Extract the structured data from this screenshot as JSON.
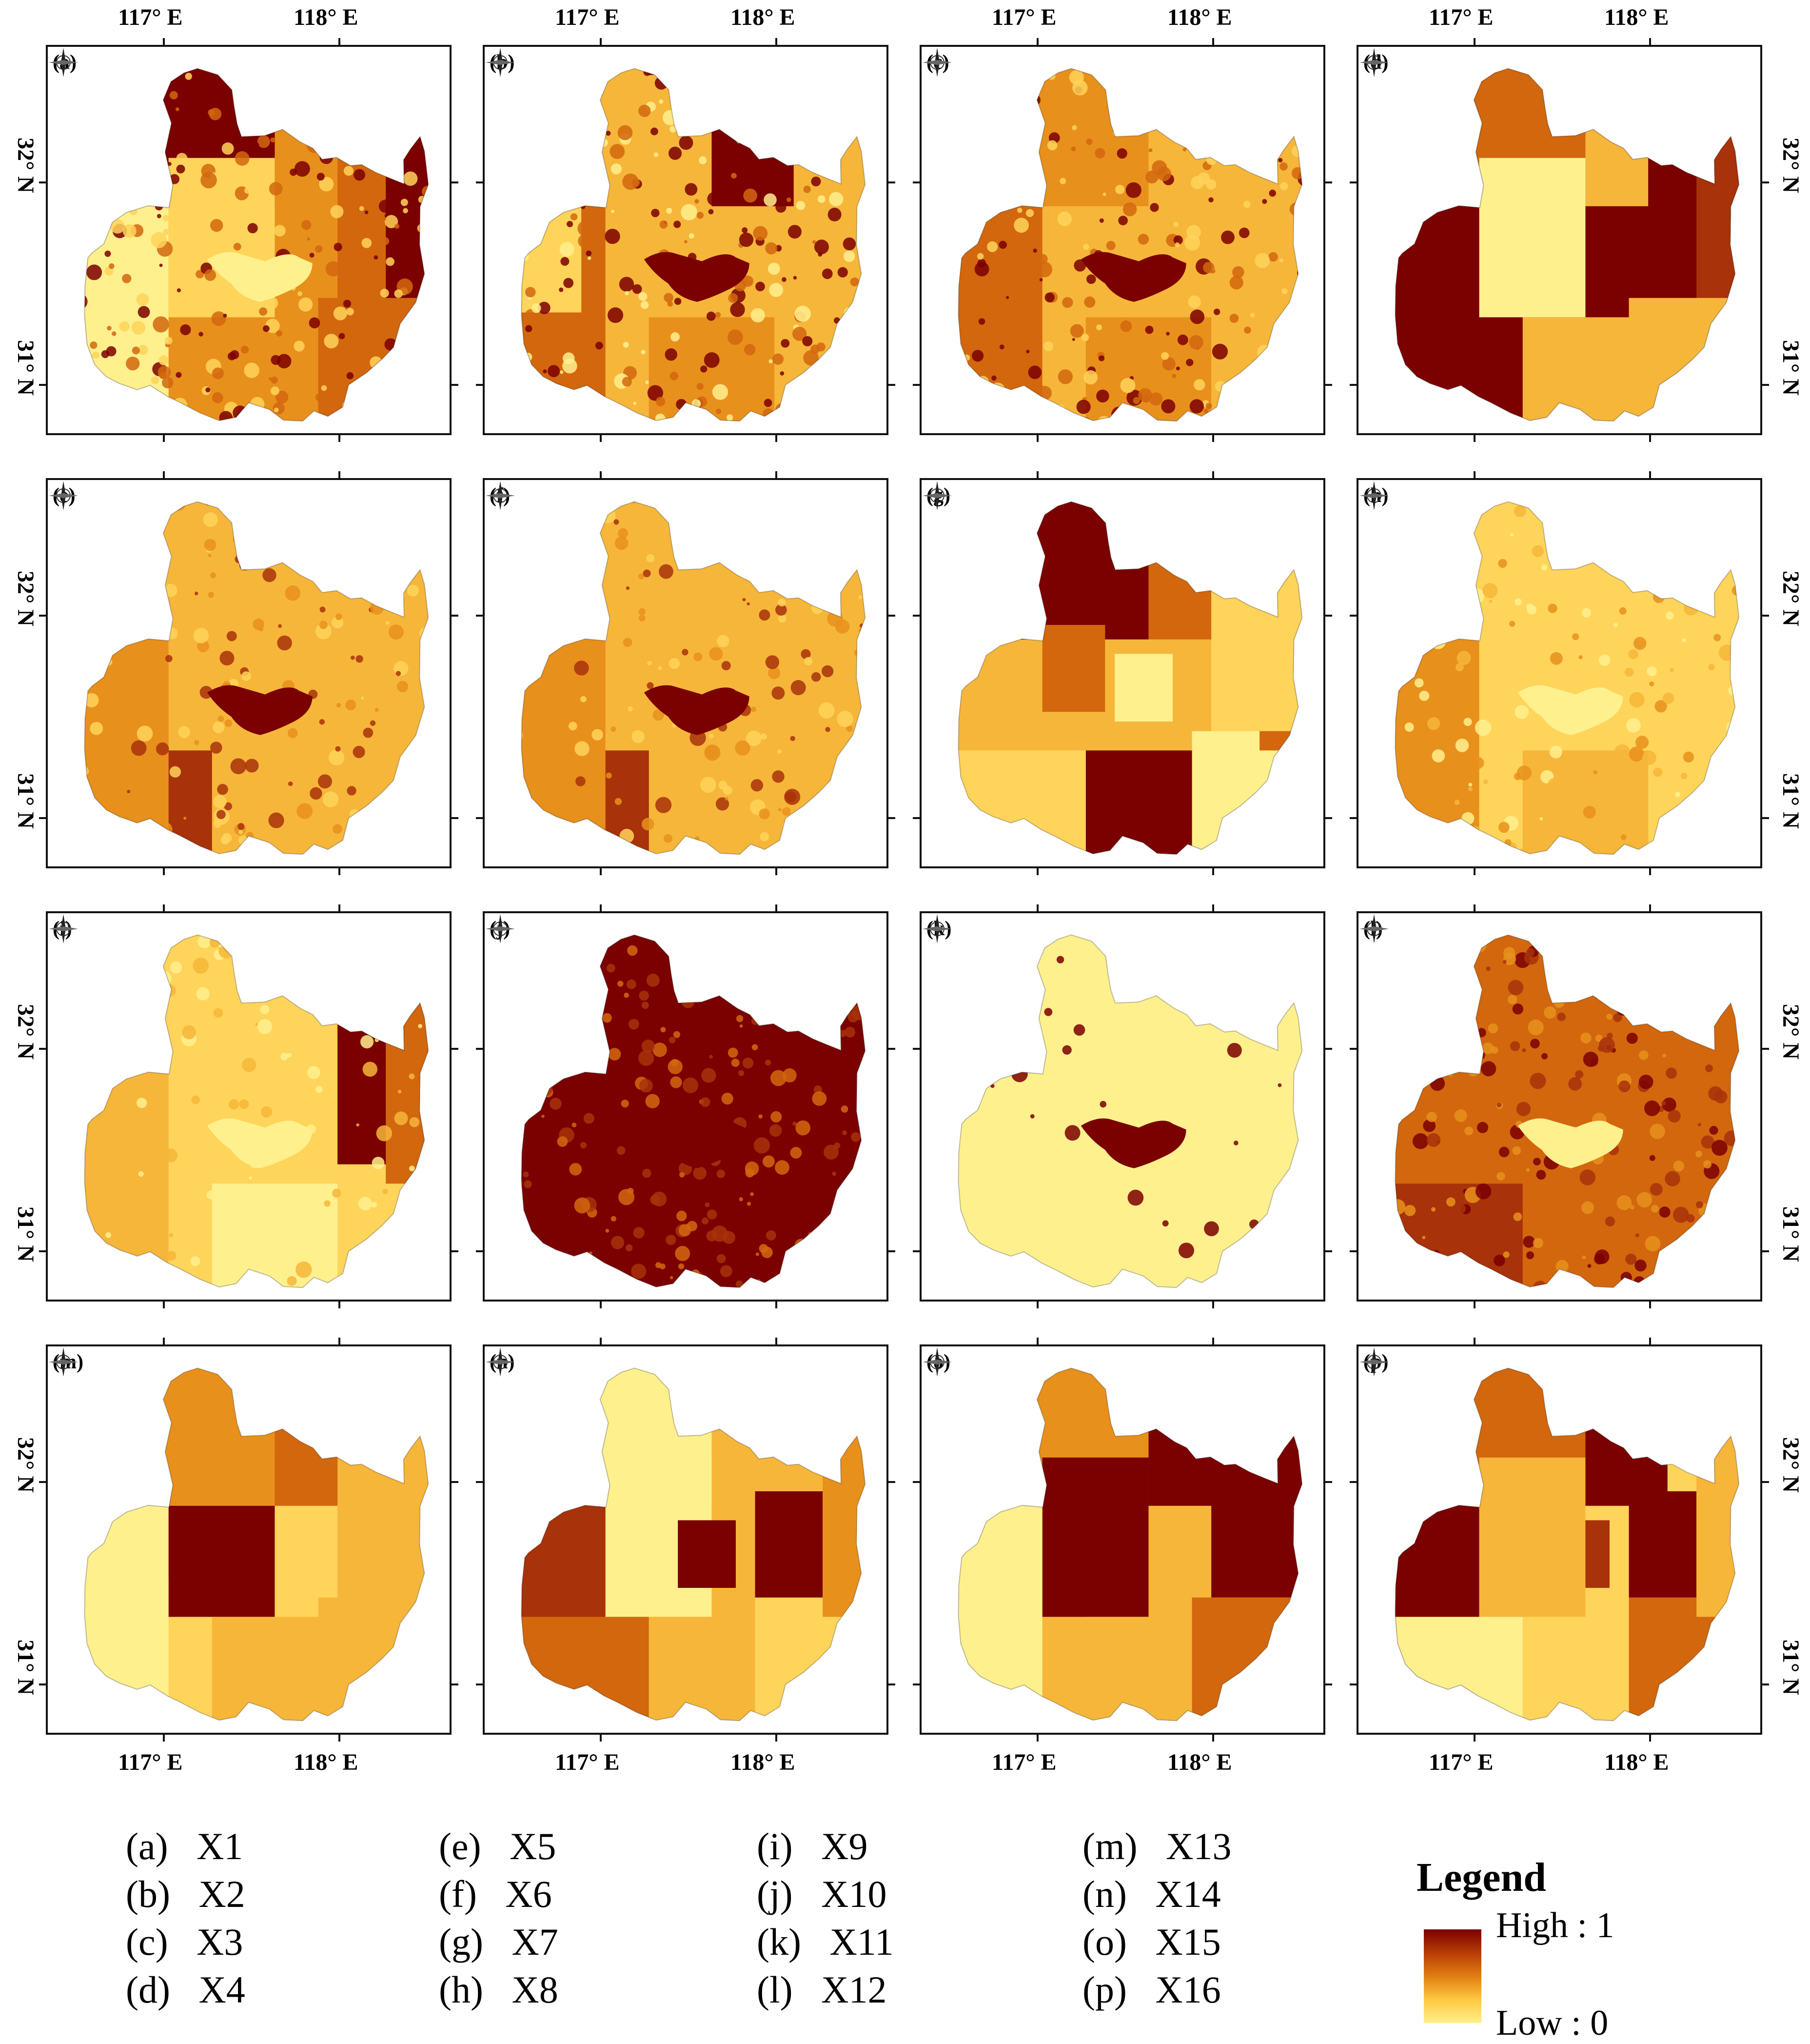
{
  "axes": {
    "lon_ticks": [
      "117° E",
      "118° E"
    ],
    "lat_ticks": [
      "32° N",
      "31° N"
    ]
  },
  "palette": {
    "dark": "#7b0000",
    "redbrown": "#a8320a",
    "orange_dark": "#d2670e",
    "orange": "#e8901c",
    "amber": "#f6b63a",
    "yellow": "#ffd45a",
    "pale": "#fff08e"
  },
  "panels": [
    {
      "id": "a",
      "label": "(a)",
      "variable": "X1"
    },
    {
      "id": "b",
      "label": "(b)",
      "variable": "X2"
    },
    {
      "id": "c",
      "label": "(c)",
      "variable": "X3"
    },
    {
      "id": "d",
      "label": "(d)",
      "variable": "X4"
    },
    {
      "id": "e",
      "label": "(e)",
      "variable": "X5"
    },
    {
      "id": "f",
      "label": "(f)",
      "variable": "X6"
    },
    {
      "id": "g",
      "label": "(g)",
      "variable": "X7"
    },
    {
      "id": "h",
      "label": "(h)",
      "variable": "X8"
    },
    {
      "id": "i",
      "label": "(i)",
      "variable": "X9"
    },
    {
      "id": "j",
      "label": "(j)",
      "variable": "X10"
    },
    {
      "id": "k",
      "label": "(k)",
      "variable": "X11"
    },
    {
      "id": "l",
      "label": "(l)",
      "variable": "X12"
    },
    {
      "id": "m",
      "label": "(m)",
      "variable": "X13"
    },
    {
      "id": "n",
      "label": "(n)",
      "variable": "X14"
    },
    {
      "id": "o",
      "label": "(o)",
      "variable": "X15"
    },
    {
      "id": "p",
      "label": "(p)",
      "variable": "X16"
    }
  ],
  "key": [
    {
      "label": "(a)",
      "name": "X1"
    },
    {
      "label": "(b)",
      "name": "X2"
    },
    {
      "label": "(c)",
      "name": "X3"
    },
    {
      "label": "(d)",
      "name": "X4"
    },
    {
      "label": "(e)",
      "name": "X5"
    },
    {
      "label": "(f)",
      "name": "X6"
    },
    {
      "label": "(g)",
      "name": "X7"
    },
    {
      "label": "(h)",
      "name": "X8"
    },
    {
      "label": "(i)",
      "name": "X9"
    },
    {
      "label": "(j)",
      "name": "X10"
    },
    {
      "label": "(k)",
      "name": "X11"
    },
    {
      "label": "(l)",
      "name": "X12"
    },
    {
      "label": "(m)",
      "name": "X13"
    },
    {
      "label": "(n)",
      "name": "X14"
    },
    {
      "label": "(o)",
      "name": "X15"
    },
    {
      "label": "(p)",
      "name": "X16"
    }
  ],
  "legend": {
    "title": "Legend",
    "high": "High : 1",
    "low": "Low : 0"
  }
}
